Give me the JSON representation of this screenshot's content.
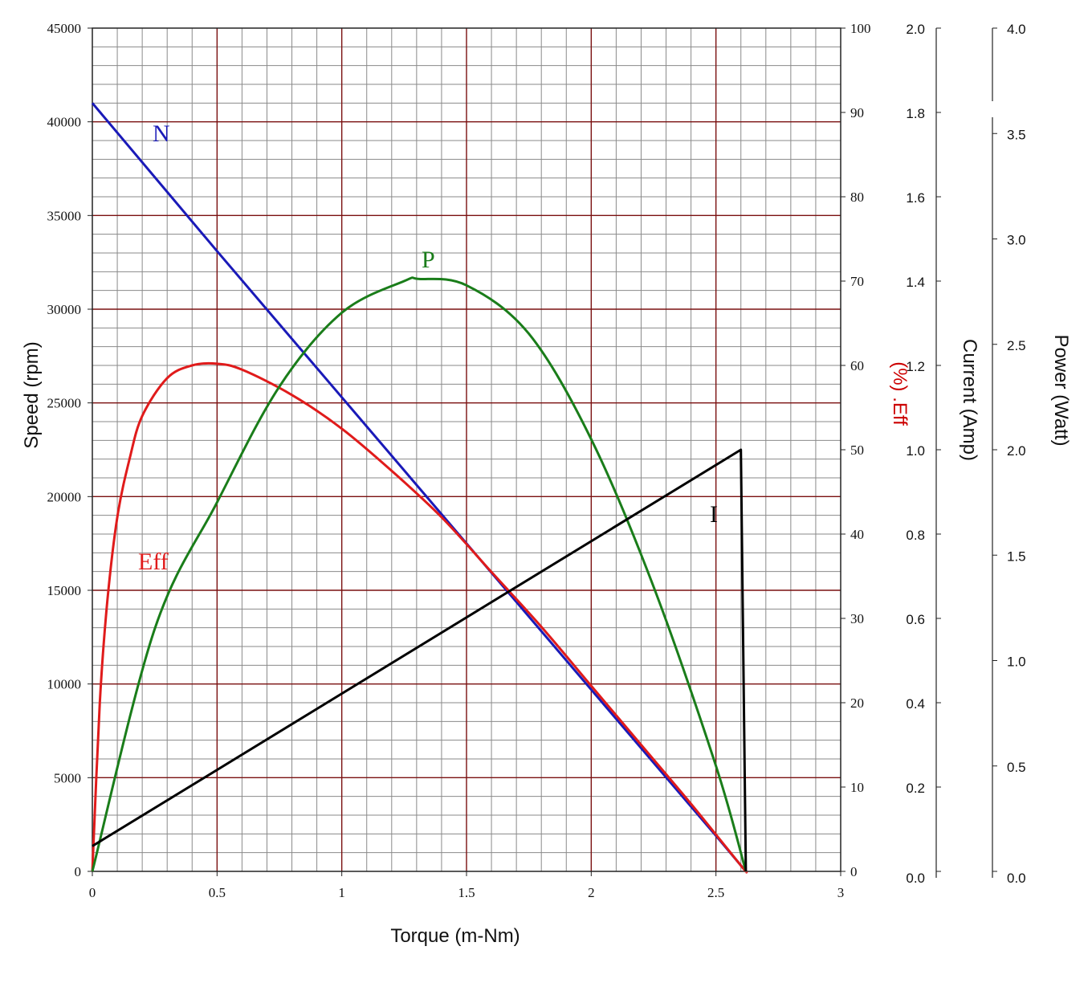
{
  "chart_data": {
    "type": "line",
    "x_axis": {
      "label": "Torque (m-Nm)",
      "range": [
        0,
        3
      ],
      "ticks": [
        "0",
        "0.5",
        "1",
        "1.5",
        "2",
        "2.5",
        "3"
      ]
    },
    "y_axes": {
      "speed": {
        "label": "Speed (rpm)",
        "range": [
          0,
          45000
        ],
        "ticks": [
          "0",
          "5000",
          "10000",
          "15000",
          "20000",
          "25000",
          "30000",
          "35000",
          "40000",
          "45000"
        ]
      },
      "efficiency": {
        "label": "(%) .Eff",
        "color": "#cc0000",
        "range": [
          0,
          100
        ],
        "ticks": [
          "0",
          "10",
          "20",
          "30",
          "40",
          "50",
          "60",
          "70",
          "80",
          "90",
          "100"
        ]
      },
      "current": {
        "label": "Current (Amp)",
        "range": [
          0,
          2.0
        ],
        "ticks": [
          "0.0",
          "0.2",
          "0.4",
          "0.6",
          "0.8",
          "1.0",
          "1.2",
          "1.4",
          "1.6",
          "1.8",
          "2.0"
        ]
      },
      "power": {
        "label": "Power (Watt)",
        "range": [
          0,
          4.0
        ],
        "ticks": [
          "0.0",
          "0.5",
          "1.0",
          "1.5",
          "2.0",
          "2.5",
          "3.0",
          "3.5",
          "4.0"
        ]
      }
    },
    "grid": true,
    "series": [
      {
        "name": "N",
        "axis": "speed",
        "color": "#1a1ab8",
        "points": [
          [
            0,
            41000
          ],
          [
            0.5,
            33100
          ],
          [
            1.0,
            25300
          ],
          [
            1.5,
            17500
          ],
          [
            2.0,
            9700
          ],
          [
            2.5,
            1900
          ],
          [
            2.62,
            0
          ]
        ]
      },
      {
        "name": "Eff",
        "axis": "efficiency",
        "color": "#e01b1b",
        "points": [
          [
            0,
            0
          ],
          [
            0.03,
            20
          ],
          [
            0.06,
            32
          ],
          [
            0.1,
            42
          ],
          [
            0.15,
            49
          ],
          [
            0.2,
            54
          ],
          [
            0.3,
            58.5
          ],
          [
            0.4,
            60
          ],
          [
            0.5,
            60.2
          ],
          [
            0.6,
            59.5
          ],
          [
            0.8,
            56.5
          ],
          [
            1.0,
            52.5
          ],
          [
            1.2,
            47.5
          ],
          [
            1.4,
            42
          ],
          [
            1.6,
            35.5
          ],
          [
            1.8,
            29
          ],
          [
            2.0,
            22
          ],
          [
            2.2,
            15
          ],
          [
            2.4,
            8
          ],
          [
            2.6,
            0.7
          ],
          [
            2.62,
            0
          ]
        ]
      },
      {
        "name": "P",
        "axis": "power",
        "color": "#1a7d1a",
        "points": [
          [
            0,
            0
          ],
          [
            0.25,
            1.15
          ],
          [
            0.5,
            1.75
          ],
          [
            0.75,
            2.3
          ],
          [
            1.0,
            2.65
          ],
          [
            1.25,
            2.8
          ],
          [
            1.31,
            2.81
          ],
          [
            1.5,
            2.78
          ],
          [
            1.75,
            2.55
          ],
          [
            2.0,
            2.05
          ],
          [
            2.25,
            1.35
          ],
          [
            2.5,
            0.5
          ],
          [
            2.62,
            0
          ]
        ]
      },
      {
        "name": "I",
        "axis": "current",
        "color": "#000000",
        "points": [
          [
            0,
            0.06
          ],
          [
            2.6,
            1.0
          ],
          [
            2.62,
            0
          ]
        ]
      }
    ]
  }
}
